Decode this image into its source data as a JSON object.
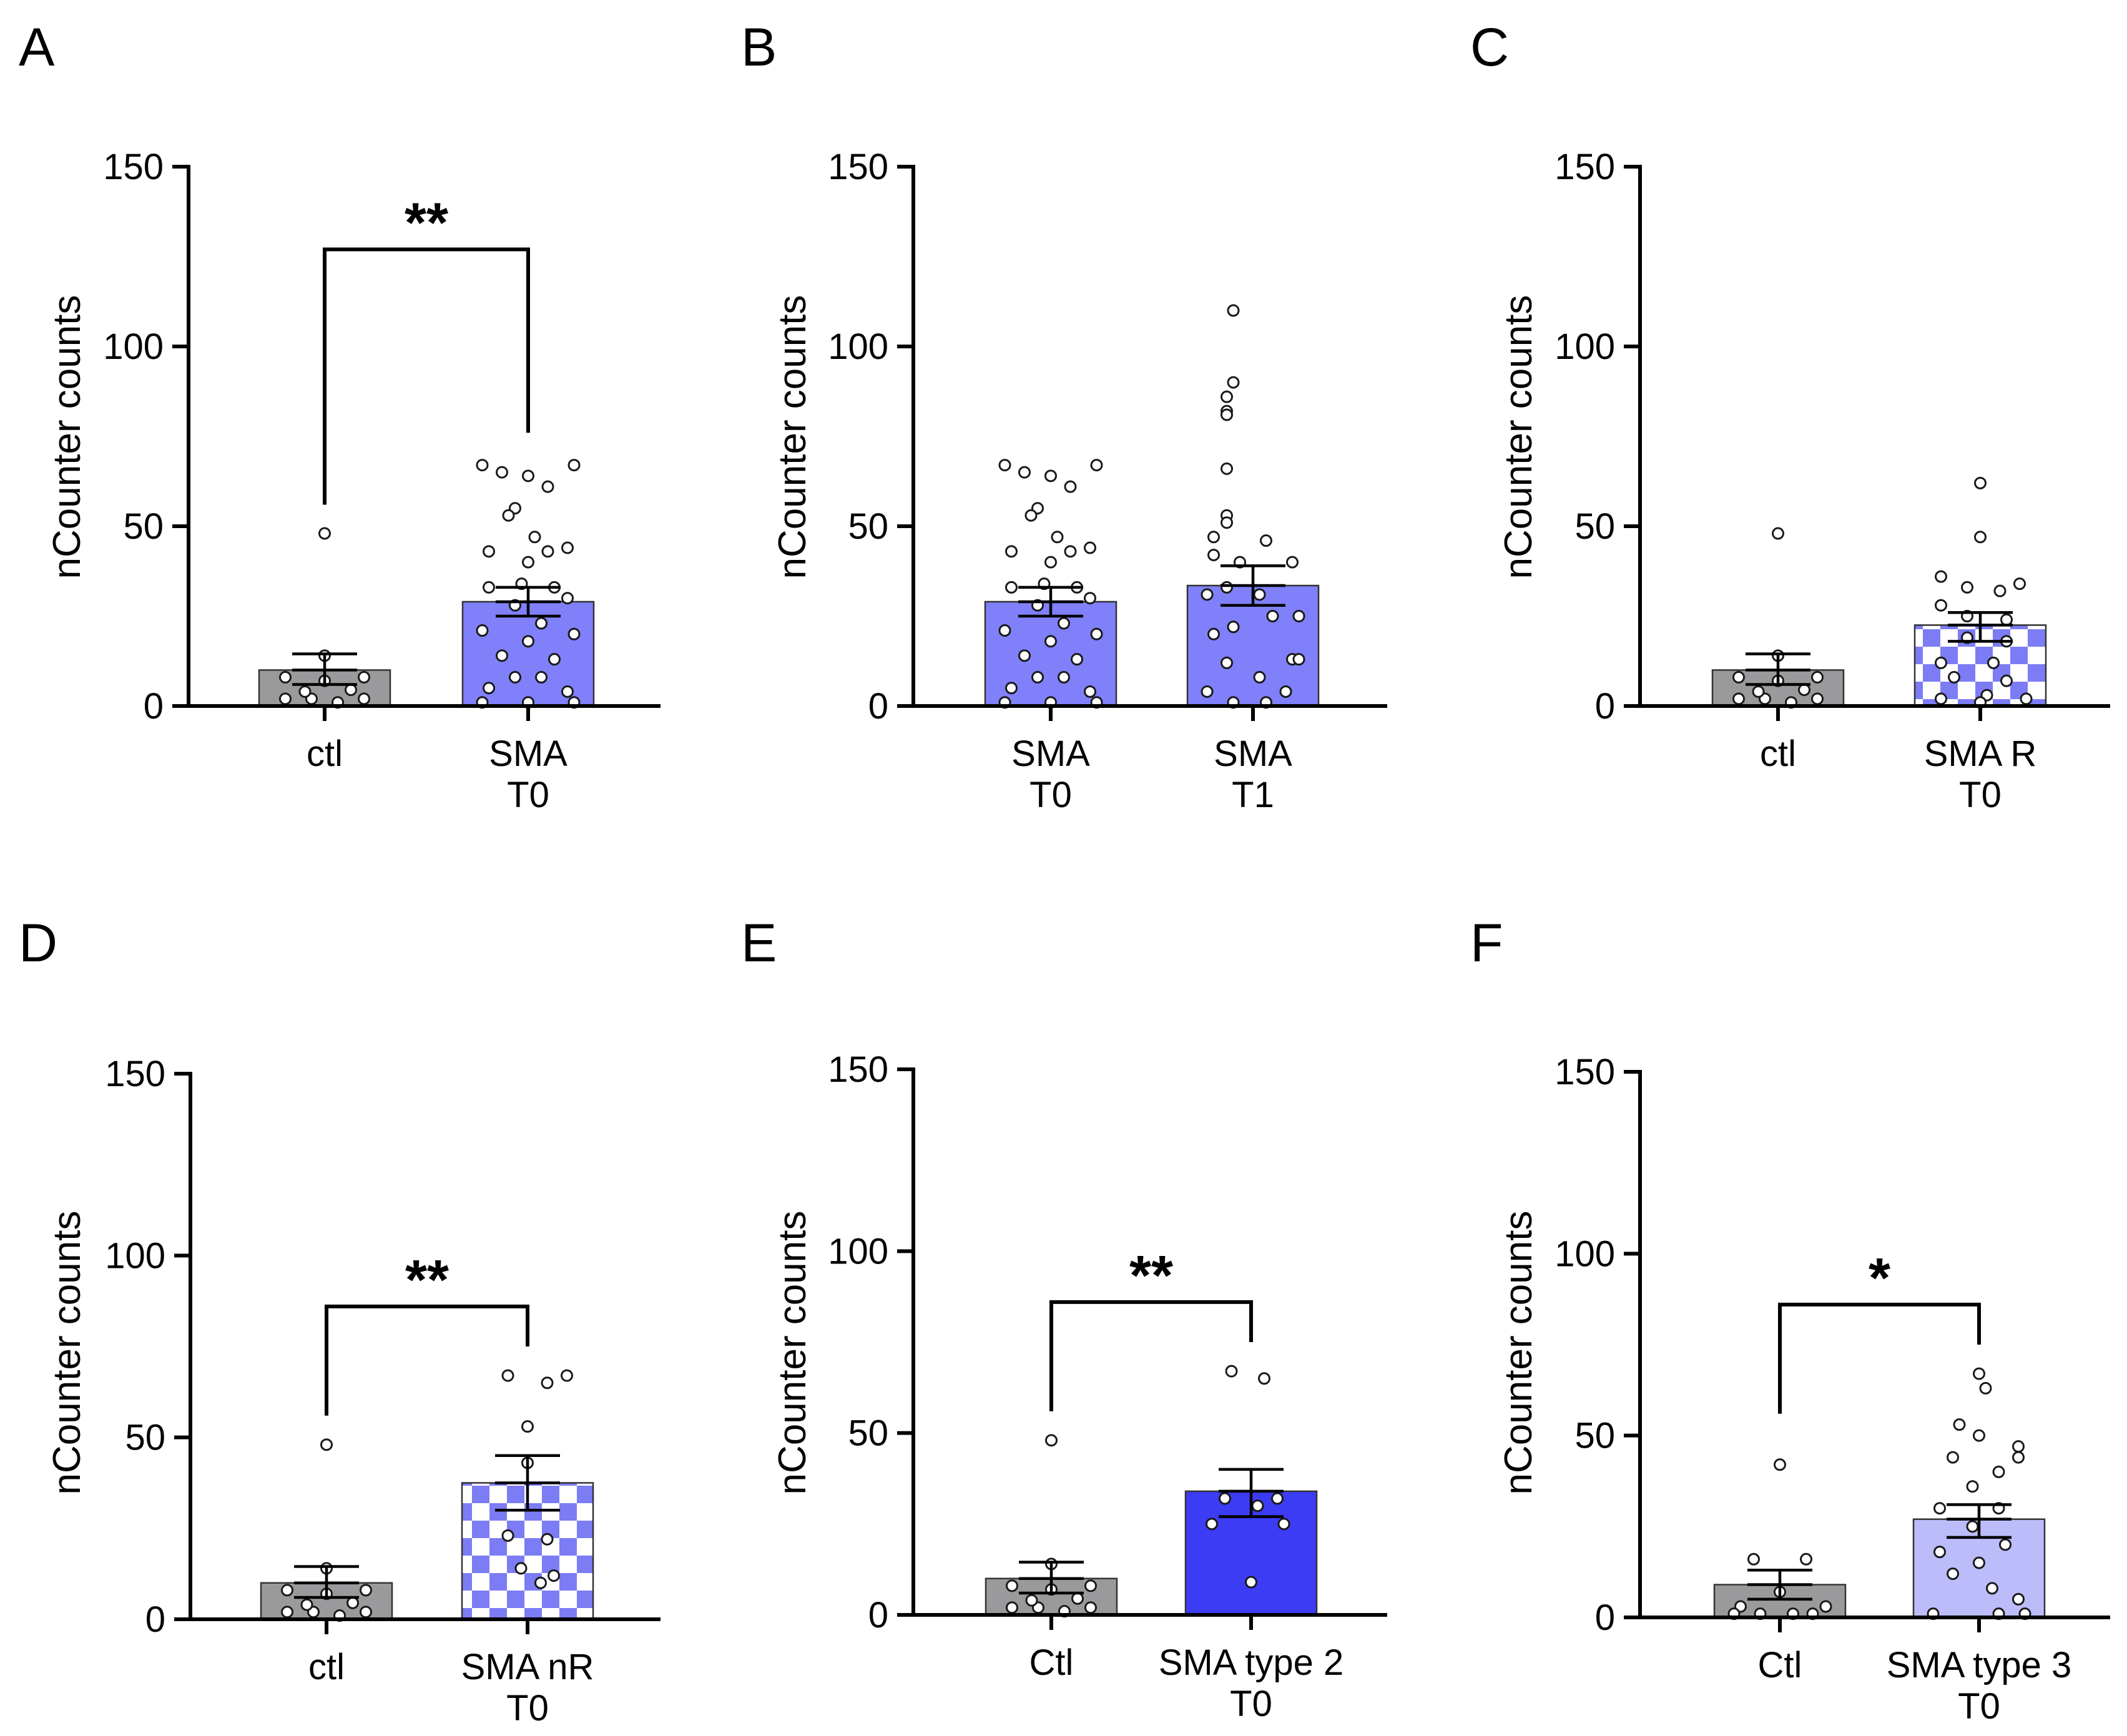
{
  "colors": {
    "ctl": "#9a9a9c",
    "sma_t0": "#8080fa",
    "sma_t1": "#8080fa",
    "checker_a": "#7c7cf5",
    "checker_b": "#ffffff",
    "type2": "#3c3cf5",
    "type3": "#bcbcfa",
    "axis": "#000000"
  },
  "chart_data": [
    {
      "panel": "A",
      "type": "bar",
      "ylabel": "nCounter counts",
      "ylim": [
        0,
        150
      ],
      "yticks": [
        "0",
        "50",
        "100",
        "150"
      ],
      "categories": [
        "ctl",
        "SMA T0"
      ],
      "category_lines": [
        [
          "ctl"
        ],
        [
          "SMA",
          "T0"
        ]
      ],
      "series": [
        {
          "name": "ctl",
          "value": 10,
          "sem": [
            6,
            14.5
          ],
          "fill": "ctl",
          "points": [
            [
              -0.3,
              8
            ],
            [
              0,
              7
            ],
            [
              0.3,
              8
            ],
            [
              -0.3,
              2
            ],
            [
              -0.1,
              2
            ],
            [
              0.1,
              1
            ],
            [
              0.3,
              2
            ],
            [
              -0.15,
              4
            ],
            [
              0.2,
              4.5
            ],
            [
              0,
              48
            ],
            [
              0,
              14
            ]
          ]
        },
        {
          "name": "SMA T0",
          "value": 29,
          "sem": [
            25,
            33
          ],
          "fill": "sma_t0",
          "points": [
            [
              -0.35,
              67
            ],
            [
              -0.2,
              65
            ],
            [
              0,
              64
            ],
            [
              0.35,
              67
            ],
            [
              0.15,
              61
            ],
            [
              -0.1,
              55
            ],
            [
              -0.15,
              53
            ],
            [
              0.05,
              47
            ],
            [
              -0.3,
              43
            ],
            [
              0.15,
              43
            ],
            [
              0.3,
              44
            ],
            [
              0,
              40
            ],
            [
              -0.3,
              33
            ],
            [
              -0.05,
              34
            ],
            [
              0.2,
              33
            ],
            [
              0.3,
              30
            ],
            [
              -0.1,
              28
            ],
            [
              0.1,
              23
            ],
            [
              -0.35,
              21
            ],
            [
              0,
              18
            ],
            [
              0.35,
              20
            ],
            [
              -0.2,
              14
            ],
            [
              0.2,
              13
            ],
            [
              -0.1,
              8
            ],
            [
              0.1,
              8
            ],
            [
              -0.3,
              5
            ],
            [
              0.3,
              4
            ],
            [
              -0.35,
              1
            ],
            [
              0,
              1
            ],
            [
              0.35,
              1
            ]
          ]
        }
      ],
      "significance": [
        {
          "label": "**",
          "from": 0,
          "to": 1,
          "bracket_y": 127,
          "left_drop": 56,
          "right_drop": 76
        }
      ]
    },
    {
      "panel": "B",
      "type": "bar",
      "ylabel": "nCounter counts",
      "ylim": [
        0,
        150
      ],
      "yticks": [
        "0",
        "50",
        "100",
        "150"
      ],
      "categories": [
        "SMA T0",
        "SMA T1"
      ],
      "category_lines": [
        [
          "SMA",
          "T0"
        ],
        [
          "SMA",
          "T1"
        ]
      ],
      "series": [
        {
          "name": "SMA T0",
          "value": 29,
          "sem": [
            25,
            33
          ],
          "fill": "sma_t0",
          "points": [
            [
              -0.35,
              67
            ],
            [
              -0.2,
              65
            ],
            [
              0,
              64
            ],
            [
              0.35,
              67
            ],
            [
              0.15,
              61
            ],
            [
              -0.1,
              55
            ],
            [
              -0.15,
              53
            ],
            [
              0.05,
              47
            ],
            [
              -0.3,
              43
            ],
            [
              0.15,
              43
            ],
            [
              0.3,
              44
            ],
            [
              0,
              40
            ],
            [
              -0.3,
              33
            ],
            [
              -0.05,
              34
            ],
            [
              0.2,
              33
            ],
            [
              0.3,
              30
            ],
            [
              -0.1,
              28
            ],
            [
              0.1,
              23
            ],
            [
              -0.35,
              21
            ],
            [
              0,
              18
            ],
            [
              0.35,
              20
            ],
            [
              -0.2,
              14
            ],
            [
              0.2,
              13
            ],
            [
              -0.1,
              8
            ],
            [
              0.1,
              8
            ],
            [
              -0.3,
              5
            ],
            [
              0.3,
              4
            ],
            [
              -0.35,
              1
            ],
            [
              0,
              1
            ],
            [
              0.35,
              1
            ]
          ]
        },
        {
          "name": "SMA T1",
          "value": 33.5,
          "sem": [
            28,
            39
          ],
          "fill": "sma_t1",
          "points": [
            [
              -0.15,
              110
            ],
            [
              -0.15,
              90
            ],
            [
              -0.2,
              86
            ],
            [
              -0.2,
              82
            ],
            [
              -0.2,
              81
            ],
            [
              -0.2,
              66
            ],
            [
              -0.2,
              53
            ],
            [
              -0.2,
              51
            ],
            [
              -0.3,
              47
            ],
            [
              0.1,
              46
            ],
            [
              -0.3,
              42
            ],
            [
              0.3,
              40
            ],
            [
              -0.1,
              40
            ],
            [
              -0.2,
              33
            ],
            [
              0.05,
              31
            ],
            [
              -0.35,
              31
            ],
            [
              0.15,
              25
            ],
            [
              0.35,
              25
            ],
            [
              -0.15,
              22
            ],
            [
              -0.3,
              20
            ],
            [
              0.3,
              13
            ],
            [
              0.35,
              13
            ],
            [
              -0.2,
              12
            ],
            [
              0.05,
              8
            ],
            [
              -0.35,
              4
            ],
            [
              0.25,
              4
            ],
            [
              -0.15,
              1
            ],
            [
              0.1,
              1
            ]
          ]
        }
      ],
      "significance": []
    },
    {
      "panel": "C",
      "type": "bar",
      "ylabel": "nCounter counts",
      "ylim": [
        0,
        150
      ],
      "yticks": [
        "0",
        "50",
        "100",
        "150"
      ],
      "categories": [
        "ctl",
        "SMA R T0"
      ],
      "category_lines": [
        [
          "ctl"
        ],
        [
          "SMA R",
          "T0"
        ]
      ],
      "series": [
        {
          "name": "ctl",
          "value": 10,
          "sem": [
            6,
            14.5
          ],
          "fill": "ctl",
          "points": [
            [
              -0.3,
              8
            ],
            [
              0,
              7
            ],
            [
              0.3,
              8
            ],
            [
              -0.3,
              2
            ],
            [
              -0.1,
              2
            ],
            [
              0.1,
              1
            ],
            [
              0.3,
              2
            ],
            [
              -0.15,
              4
            ],
            [
              0.2,
              4.5
            ],
            [
              0,
              48
            ],
            [
              0,
              14
            ]
          ]
        },
        {
          "name": "SMA R T0",
          "value": 22.5,
          "sem": [
            18,
            26
          ],
          "fill": "checker",
          "points": [
            [
              0,
              62
            ],
            [
              0,
              47
            ],
            [
              -0.3,
              36
            ],
            [
              0.3,
              34
            ],
            [
              -0.1,
              33
            ],
            [
              0.15,
              32
            ],
            [
              -0.3,
              28
            ],
            [
              -0.1,
              25
            ],
            [
              0.2,
              24
            ],
            [
              -0.1,
              19
            ],
            [
              0.2,
              18
            ],
            [
              -0.3,
              12
            ],
            [
              0.1,
              12
            ],
            [
              -0.2,
              8
            ],
            [
              0.2,
              7
            ],
            [
              0.05,
              3
            ],
            [
              -0.3,
              2
            ],
            [
              0.35,
              2
            ],
            [
              0,
              1
            ]
          ]
        }
      ],
      "significance": []
    },
    {
      "panel": "D",
      "type": "bar",
      "ylabel": "nCounter counts",
      "ylim": [
        0,
        150
      ],
      "yticks": [
        "0",
        "50",
        "100",
        "150"
      ],
      "categories": [
        "ctl",
        "SMA nR T0"
      ],
      "category_lines": [
        [
          "ctl"
        ],
        [
          "SMA nR",
          "T0"
        ]
      ],
      "series": [
        {
          "name": "ctl",
          "value": 10,
          "sem": [
            6,
            14.5
          ],
          "fill": "ctl",
          "points": [
            [
              -0.3,
              8
            ],
            [
              0,
              7
            ],
            [
              0.3,
              8
            ],
            [
              -0.3,
              2
            ],
            [
              -0.1,
              2
            ],
            [
              0.1,
              1
            ],
            [
              0.3,
              2
            ],
            [
              -0.15,
              4
            ],
            [
              0.2,
              4.5
            ],
            [
              0,
              48
            ],
            [
              0,
              14
            ]
          ]
        },
        {
          "name": "SMA nR T0",
          "value": 37.5,
          "sem": [
            30,
            45
          ],
          "fill": "checker",
          "points": [
            [
              -0.15,
              67
            ],
            [
              0.15,
              65
            ],
            [
              0.3,
              67
            ],
            [
              0,
              53
            ],
            [
              0,
              43
            ],
            [
              0.15,
              22
            ],
            [
              -0.15,
              23
            ],
            [
              -0.05,
              14
            ],
            [
              0.2,
              12
            ],
            [
              0.1,
              10
            ]
          ]
        }
      ],
      "significance": [
        {
          "label": "**",
          "from": 0,
          "to": 1,
          "bracket_y": 86,
          "left_drop": 56,
          "right_drop": 75
        }
      ]
    },
    {
      "panel": "E",
      "type": "bar",
      "ylabel": "nCounter counts",
      "ylim": [
        0,
        150
      ],
      "yticks": [
        "0",
        "50",
        "100",
        "150"
      ],
      "categories": [
        "Ctl",
        "SMA type 2 T0"
      ],
      "category_lines": [
        [
          "Ctl"
        ],
        [
          "SMA type 2",
          "T0"
        ]
      ],
      "series": [
        {
          "name": "Ctl",
          "value": 10,
          "sem": [
            6,
            14.5
          ],
          "fill": "ctl",
          "points": [
            [
              -0.3,
              8
            ],
            [
              0,
              7
            ],
            [
              0.3,
              8
            ],
            [
              -0.3,
              2
            ],
            [
              -0.1,
              2
            ],
            [
              0.1,
              1
            ],
            [
              0.3,
              2
            ],
            [
              -0.15,
              4
            ],
            [
              0.2,
              4.5
            ],
            [
              0,
              48
            ],
            [
              0,
              14
            ]
          ]
        },
        {
          "name": "SMA type 2 T0",
          "value": 34,
          "sem": [
            27,
            40
          ],
          "fill": "type2",
          "points": [
            [
              -0.15,
              67
            ],
            [
              0.1,
              65
            ],
            [
              -0.2,
              32
            ],
            [
              0.2,
              32
            ],
            [
              0.05,
              30
            ],
            [
              -0.3,
              25
            ],
            [
              0.25,
              25
            ],
            [
              0,
              9
            ]
          ]
        }
      ],
      "significance": [
        {
          "label": "**",
          "from": 0,
          "to": 1,
          "bracket_y": 86,
          "left_drop": 56,
          "right_drop": 75
        }
      ]
    },
    {
      "panel": "F",
      "type": "bar",
      "ylabel": "nCounter counts",
      "ylim": [
        0,
        150
      ],
      "yticks": [
        "0",
        "50",
        "100",
        "150"
      ],
      "categories": [
        "Ctl",
        "SMA type 3 T0"
      ],
      "category_lines": [
        [
          "Ctl"
        ],
        [
          "SMA type 3",
          "T0"
        ]
      ],
      "series": [
        {
          "name": "Ctl",
          "value": 9,
          "sem": [
            5,
            13
          ],
          "fill": "ctl",
          "points": [
            [
              0,
              42
            ],
            [
              -0.2,
              16
            ],
            [
              0.2,
              16
            ],
            [
              0,
              7
            ],
            [
              -0.3,
              3
            ],
            [
              0.35,
              3
            ],
            [
              -0.15,
              1
            ],
            [
              0.1,
              1
            ],
            [
              0.25,
              1
            ],
            [
              -0.35,
              1
            ]
          ]
        },
        {
          "name": "SMA type 3 T0",
          "value": 27,
          "sem": [
            22,
            31
          ],
          "fill": "type3",
          "points": [
            [
              0,
              67
            ],
            [
              0.05,
              63
            ],
            [
              -0.15,
              53
            ],
            [
              0,
              50
            ],
            [
              0.3,
              47
            ],
            [
              0.3,
              44
            ],
            [
              -0.2,
              44
            ],
            [
              0.15,
              40
            ],
            [
              -0.05,
              36
            ],
            [
              -0.3,
              30
            ],
            [
              0.15,
              30
            ],
            [
              -0.05,
              25
            ],
            [
              0.2,
              20
            ],
            [
              -0.3,
              18
            ],
            [
              0,
              15
            ],
            [
              -0.2,
              12
            ],
            [
              0.1,
              8
            ],
            [
              0.3,
              5
            ],
            [
              -0.35,
              1
            ],
            [
              0.15,
              1
            ],
            [
              0.35,
              1
            ]
          ]
        }
      ],
      "significance": [
        {
          "label": "*",
          "from": 0,
          "to": 1,
          "bracket_y": 86,
          "left_drop": 56,
          "right_drop": 75
        }
      ]
    }
  ]
}
